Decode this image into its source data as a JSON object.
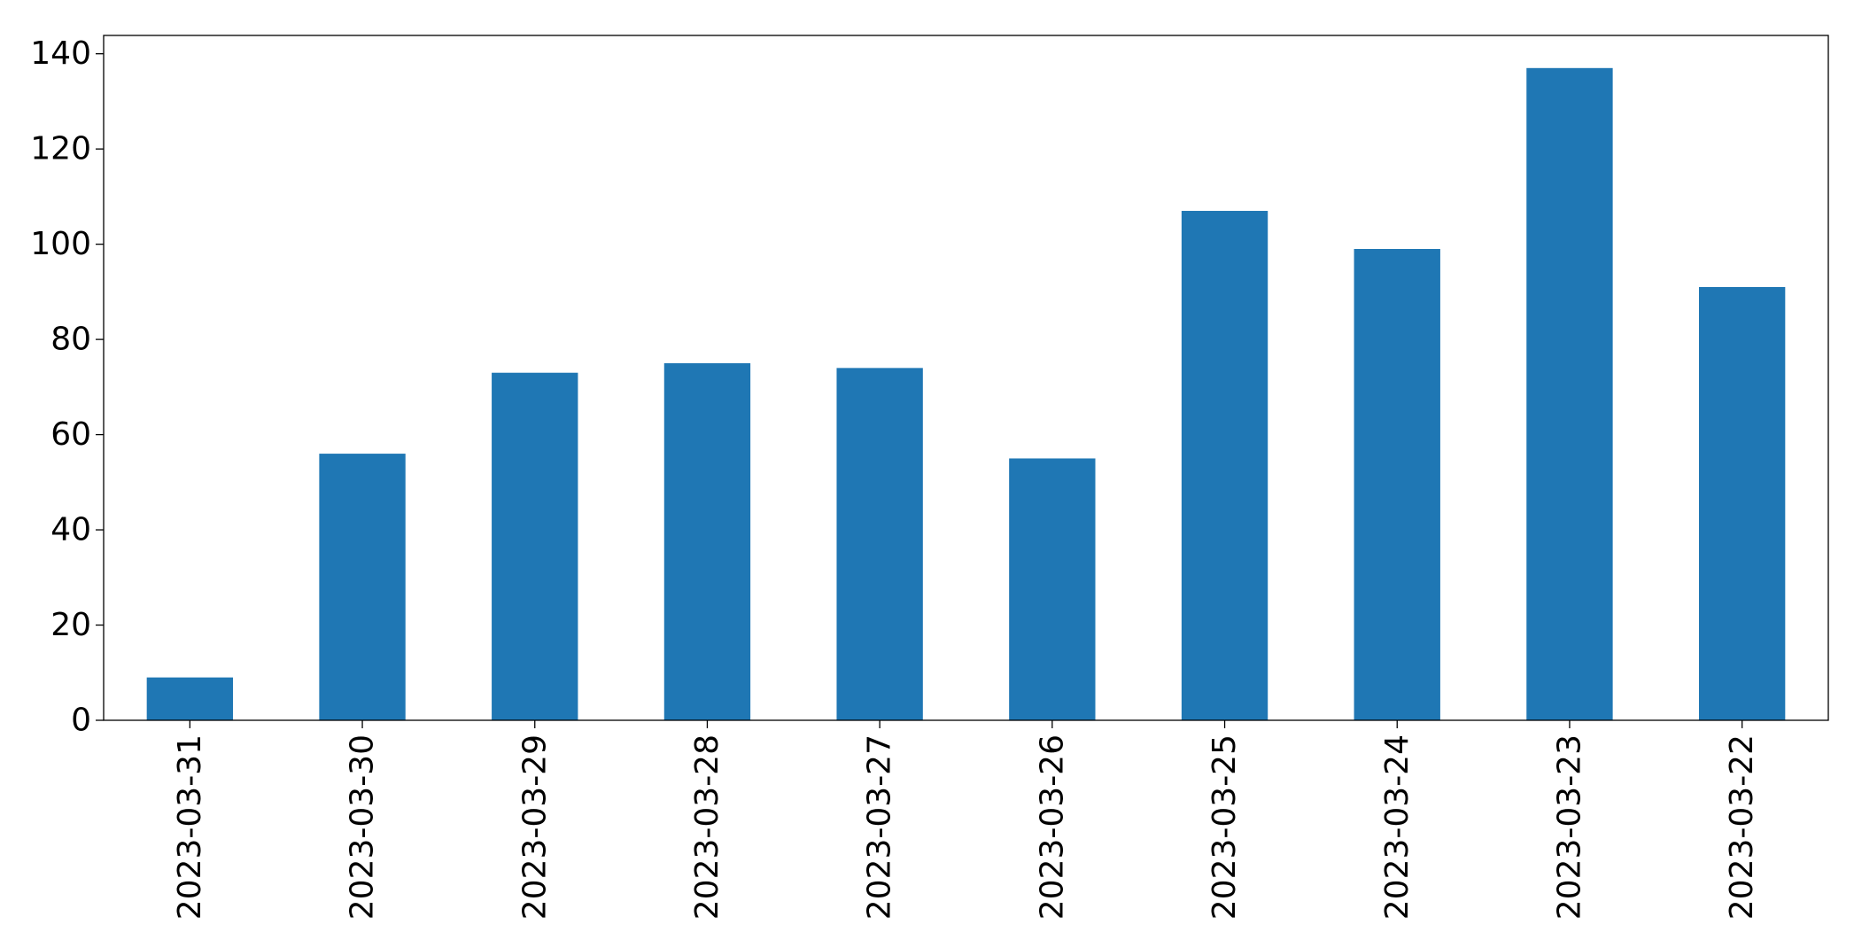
{
  "chart_data": {
    "type": "bar",
    "categories": [
      "2023-03-31",
      "2023-03-30",
      "2023-03-29",
      "2023-03-28",
      "2023-03-27",
      "2023-03-26",
      "2023-03-25",
      "2023-03-24",
      "2023-03-23",
      "2023-03-22"
    ],
    "values": [
      9,
      56,
      73,
      75,
      74,
      55,
      107,
      99,
      137,
      91
    ],
    "color": "#1f77b4",
    "ylim": [
      0,
      143.85
    ],
    "yticks": [
      0,
      20,
      40,
      60,
      80,
      100,
      120,
      140
    ],
    "grid": false
  }
}
